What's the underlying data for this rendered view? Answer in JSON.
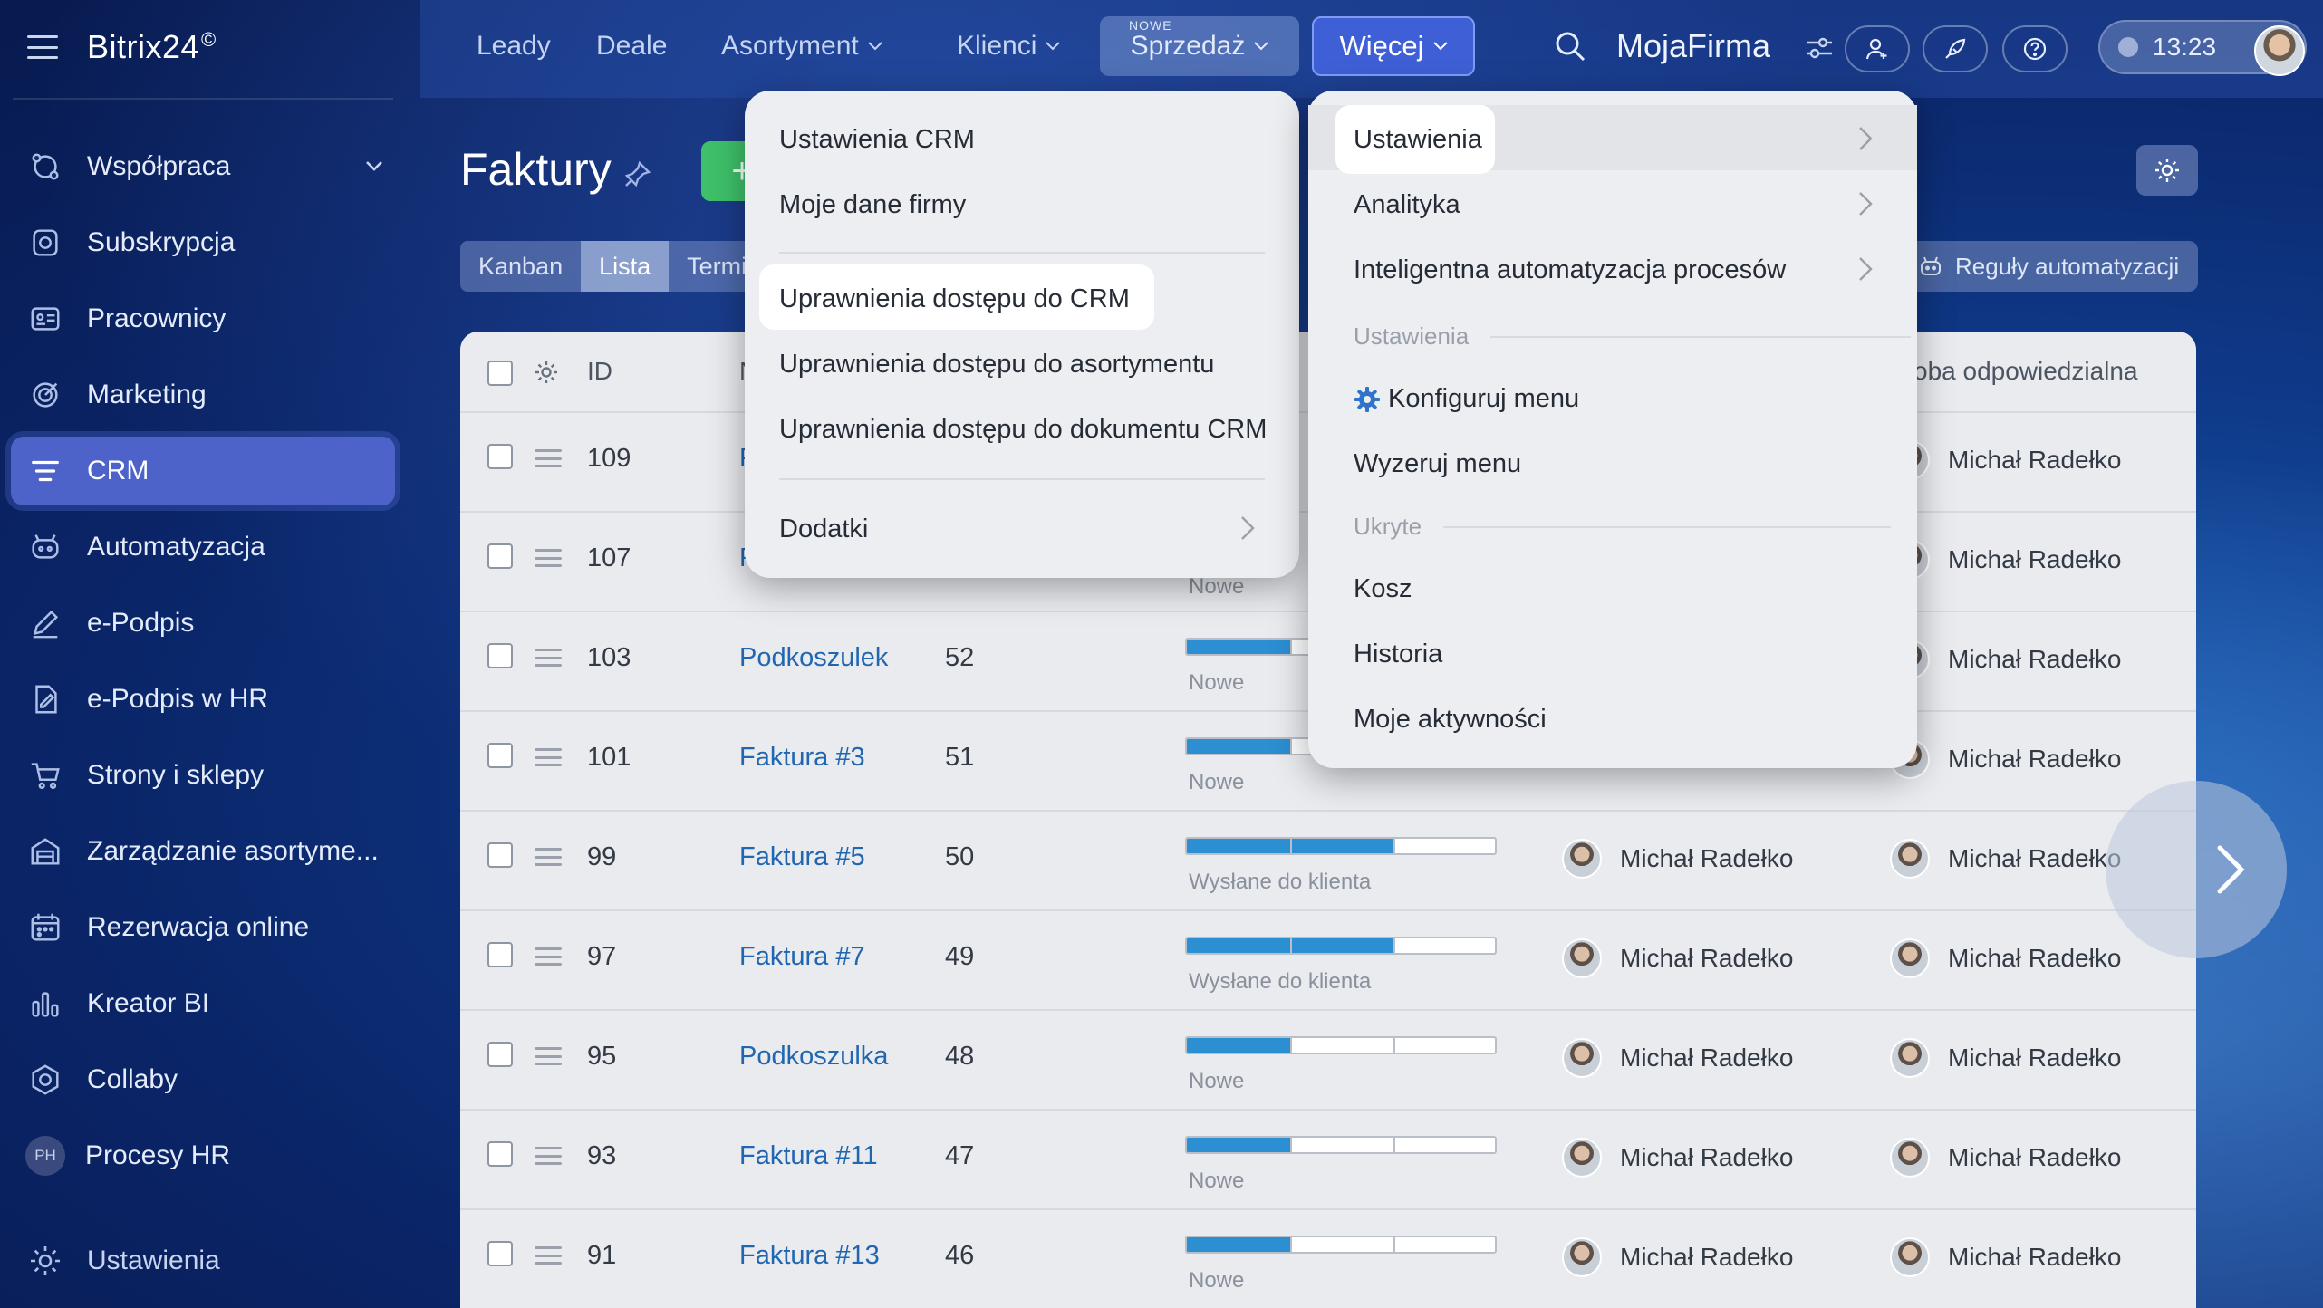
{
  "app": {
    "logo": "Bitrix24",
    "logo_mark": "©"
  },
  "sidebar": {
    "items": [
      {
        "label": "Współpraca",
        "icon": "collaboration-icon",
        "expandable": true
      },
      {
        "label": "Subskrypcja",
        "icon": "subscription-icon"
      },
      {
        "label": "Pracownicy",
        "icon": "employees-icon"
      },
      {
        "label": "Marketing",
        "icon": "marketing-icon"
      },
      {
        "label": "CRM",
        "icon": "crm-icon",
        "active": true
      },
      {
        "label": "Automatyzacja",
        "icon": "automation-icon"
      },
      {
        "label": "e-Podpis",
        "icon": "signature-icon"
      },
      {
        "label": "e-Podpis w HR",
        "icon": "hr-signature-icon"
      },
      {
        "label": "Strony i sklepy",
        "icon": "cart-icon"
      },
      {
        "label": "Zarządzanie asortyme...",
        "icon": "warehouse-icon"
      },
      {
        "label": "Rezerwacja online",
        "icon": "calendar-icon"
      },
      {
        "label": "Kreator BI",
        "icon": "bar-chart-icon"
      },
      {
        "label": "Collaby",
        "icon": "hexagon-icon"
      },
      {
        "label": "Procesy HR",
        "icon": "ph-badge",
        "badge": "PH"
      }
    ],
    "settings_label": "Ustawienia"
  },
  "topbar": {
    "links": [
      "Leady",
      "Deale",
      "Asortyment",
      "Klienci"
    ],
    "sprzedaz_label": "Sprzedaż",
    "sprzedaz_badge": "NOWE",
    "more_label": "Więcej",
    "company": "MojaFirma",
    "time": "13:23"
  },
  "page": {
    "title": "Faktury",
    "add_label": "+",
    "view_tabs": [
      "Kanban",
      "Lista",
      "Termi"
    ],
    "active_tab": "Lista",
    "rules_label": "Reguły automatyzacji"
  },
  "table": {
    "headers": {
      "id": "ID",
      "name_fragment": "N",
      "responsible": "oba odpowiedzialna"
    },
    "rows": [
      {
        "id": "109",
        "name": "F",
        "num": "",
        "stage_fill": null,
        "stage": "",
        "assignee": "",
        "responsible": "Michał Radełko"
      },
      {
        "id": "107",
        "name": "F",
        "num": "",
        "stage_fill": null,
        "stage": "Nowe",
        "assignee": "",
        "responsible": "Michał Radełko"
      },
      {
        "id": "103",
        "name": "Podkoszulek",
        "num": "52",
        "stage_fill": 0.33,
        "stage": "Nowe",
        "assignee": "",
        "responsible": "Michał Radełko"
      },
      {
        "id": "101",
        "name": "Faktura #3",
        "num": "51",
        "stage_fill": 0.33,
        "stage": "Nowe",
        "assignee": "",
        "responsible": "Michał Radełko"
      },
      {
        "id": "99",
        "name": "Faktura #5",
        "num": "50",
        "stage_fill": 0.66,
        "stage": "Wysłane do klienta",
        "assignee": "Michał Radełko",
        "responsible": "Michał Radełko"
      },
      {
        "id": "97",
        "name": "Faktura #7",
        "num": "49",
        "stage_fill": 0.66,
        "stage": "Wysłane do klienta",
        "assignee": "Michał Radełko",
        "responsible": "Michał Radełko"
      },
      {
        "id": "95",
        "name": "Podkoszulka",
        "num": "48",
        "stage_fill": 0.33,
        "stage": "Nowe",
        "assignee": "Michał Radełko",
        "responsible": "Michał Radełko"
      },
      {
        "id": "93",
        "name": "Faktura #11",
        "num": "47",
        "stage_fill": 0.33,
        "stage": "Nowe",
        "assignee": "Michał Radełko",
        "responsible": "Michał Radełko"
      },
      {
        "id": "91",
        "name": "Faktura #13",
        "num": "46",
        "stage_fill": 0.33,
        "stage": "Nowe",
        "assignee": "Michał Radełko",
        "responsible": "Michał Radełko"
      }
    ]
  },
  "menu_left": {
    "items": [
      {
        "label": "Ustawienia CRM"
      },
      {
        "label": "Moje dane firmy"
      },
      {
        "label": "Uprawnienia dostępu do CRM",
        "highlighted": true
      },
      {
        "label": "Uprawnienia dostępu do asortymentu"
      },
      {
        "label": "Uprawnienia dostępu do dokumentu CRM"
      },
      {
        "label": "Dodatki",
        "submenu": true
      }
    ]
  },
  "menu_right": {
    "items": [
      {
        "label": "Ustawienia",
        "submenu": true,
        "highlighted": true
      },
      {
        "label": "Analityka",
        "submenu": true
      },
      {
        "label": "Inteligentna automatyzacja procesów",
        "submenu": true
      }
    ],
    "section_settings": "Ustawienia",
    "configure_label": "Konfiguruj menu",
    "reset_label": "Wyzeruj menu",
    "section_hidden": "Ukryte",
    "hidden_items": [
      "Kosz",
      "Historia",
      "Moje aktywności"
    ]
  },
  "colors": {
    "accent": "#3f5fd6",
    "active_nav": "#4d63c9",
    "link": "#2066b0",
    "stage_fill": "#2b8fd1",
    "add_button": "#3ec16a"
  }
}
